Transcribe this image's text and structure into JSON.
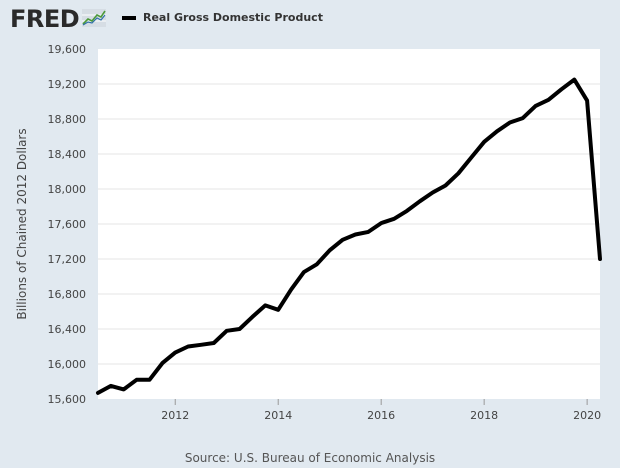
{
  "header": {
    "logo_text": "FRED",
    "logo_icon": "trend-line-icon",
    "legend_label": "Real Gross Domestic Product"
  },
  "footer": {
    "source": "Source: U.S. Bureau of Economic Analysis"
  },
  "colors": {
    "background": "#e1e9f0",
    "plot": "#ffffff",
    "line": "#000000",
    "grid": "#e6e6e6"
  },
  "chart_data": {
    "type": "line",
    "title": "",
    "xlabel": "",
    "ylabel": "Billions of Chained 2012 Dollars",
    "ylim": [
      15600,
      19600
    ],
    "yticks": [
      15600,
      16000,
      16400,
      16800,
      17200,
      17600,
      18000,
      18400,
      18800,
      19200,
      19600
    ],
    "ytick_labels": [
      "15,600",
      "16,000",
      "16,400",
      "16,800",
      "17,200",
      "17,600",
      "18,000",
      "18,400",
      "18,800",
      "19,200",
      "19,600"
    ],
    "xlim": [
      2010.5,
      2020.25
    ],
    "xticks": [
      2012,
      2014,
      2016,
      2018,
      2020
    ],
    "xtick_labels": [
      "2012",
      "2014",
      "2016",
      "2018",
      "2020"
    ],
    "grid": true,
    "legend": "top",
    "series": [
      {
        "name": "Real Gross Domestic Product",
        "x": [
          2010.5,
          2010.75,
          2011.0,
          2011.25,
          2011.5,
          2011.75,
          2012.0,
          2012.25,
          2012.5,
          2012.75,
          2013.0,
          2013.25,
          2013.5,
          2013.75,
          2014.0,
          2014.25,
          2014.5,
          2014.75,
          2015.0,
          2015.25,
          2015.5,
          2015.75,
          2016.0,
          2016.25,
          2016.5,
          2016.75,
          2017.0,
          2017.25,
          2017.5,
          2017.75,
          2018.0,
          2018.25,
          2018.5,
          2018.75,
          2019.0,
          2019.25,
          2019.5,
          2019.75,
          2020.0,
          2020.25
        ],
        "values": [
          15670,
          15750,
          15710,
          15820,
          15820,
          16010,
          16130,
          16200,
          16220,
          16240,
          16380,
          16400,
          16540,
          16670,
          16620,
          16850,
          17050,
          17140,
          17300,
          17420,
          17480,
          17510,
          17610,
          17660,
          17750,
          17860,
          17960,
          18040,
          18180,
          18360,
          18540,
          18660,
          18760,
          18810,
          18950,
          19020,
          19140,
          19250,
          19010,
          17200
        ]
      }
    ]
  }
}
